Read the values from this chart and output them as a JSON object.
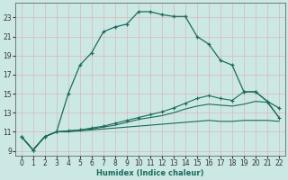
{
  "xlabel": "Humidex (Indice chaleur)",
  "bg_color": "#cce8e4",
  "grid_color": "#d8b8b8",
  "line_color": "#1a6b5a",
  "xlim": [
    -0.5,
    22.5
  ],
  "ylim": [
    8.5,
    24.5
  ],
  "yticks": [
    9,
    11,
    13,
    15,
    17,
    19,
    21,
    23
  ],
  "xticks": [
    0,
    1,
    2,
    3,
    4,
    5,
    6,
    7,
    8,
    9,
    10,
    11,
    12,
    13,
    14,
    15,
    16,
    17,
    18,
    19,
    20,
    21,
    22
  ],
  "line1_x": [
    0,
    1,
    2,
    3,
    4,
    5,
    6,
    7,
    8,
    9,
    10,
    11,
    12,
    13,
    14,
    15,
    16,
    17,
    18,
    19,
    20,
    21,
    22
  ],
  "line1_y": [
    10.5,
    9.1,
    10.5,
    11.0,
    15.0,
    18.0,
    19.3,
    21.5,
    22.0,
    22.3,
    23.6,
    23.6,
    23.3,
    23.1,
    23.1,
    21.0,
    20.2,
    18.5,
    18.0,
    15.2,
    15.2,
    14.2,
    13.5
  ],
  "line2_x": [
    0,
    1,
    2,
    3,
    4,
    5,
    6,
    7,
    8,
    9,
    10,
    11,
    12,
    13,
    14,
    15,
    16,
    17,
    18,
    19,
    20,
    21,
    22
  ],
  "line2_y": [
    10.5,
    9.1,
    10.5,
    11.0,
    11.1,
    11.2,
    11.4,
    11.6,
    11.9,
    12.2,
    12.5,
    12.8,
    13.1,
    13.5,
    14.0,
    14.5,
    14.8,
    14.5,
    14.3,
    15.2,
    15.2,
    14.2,
    12.5
  ],
  "line3_x": [
    0,
    1,
    2,
    3,
    4,
    5,
    6,
    7,
    8,
    9,
    10,
    11,
    12,
    13,
    14,
    15,
    16,
    17,
    18,
    19,
    20,
    21,
    22
  ],
  "line3_y": [
    10.5,
    9.1,
    10.5,
    11.0,
    11.1,
    11.2,
    11.3,
    11.5,
    11.7,
    12.0,
    12.3,
    12.5,
    12.7,
    13.0,
    13.4,
    13.7,
    13.9,
    13.8,
    13.7,
    13.9,
    14.2,
    14.1,
    12.5
  ],
  "line4_x": [
    0,
    1,
    2,
    3,
    4,
    5,
    6,
    7,
    8,
    9,
    10,
    11,
    12,
    13,
    14,
    15,
    16,
    17,
    18,
    19,
    20,
    21,
    22
  ],
  "line4_y": [
    10.5,
    9.1,
    10.5,
    11.0,
    11.0,
    11.1,
    11.2,
    11.3,
    11.4,
    11.5,
    11.6,
    11.7,
    11.8,
    11.9,
    12.0,
    12.1,
    12.2,
    12.1,
    12.1,
    12.2,
    12.2,
    12.2,
    12.1
  ]
}
